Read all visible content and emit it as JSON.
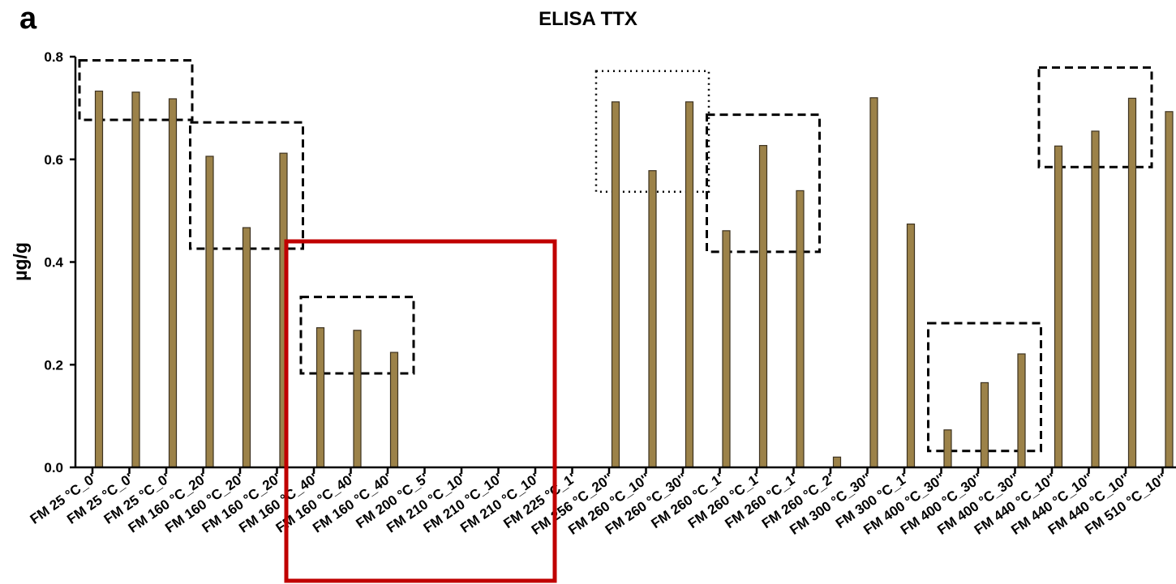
{
  "panel_letter": "a",
  "chart_data": {
    "type": "bar",
    "title": "ELISA TTX",
    "xlabel": "",
    "ylabel": "µg/g",
    "ylim": [
      0,
      0.8
    ],
    "yticks": [
      "0.0",
      "0.2",
      "0.4",
      "0.6",
      "0.8"
    ],
    "grid": false,
    "bar_color": "#9c8249",
    "bar_edge_color": "#3d3220",
    "highlight_color": "#c00000",
    "categories": [
      "FM  25 °C_0'",
      "FM 25 °C_0'",
      "FM 25 °C_0'",
      "FM 160 °C_20'",
      "FM 160 °C_20'",
      "FM 160 °C_20'",
      "FM 160 °C_40'",
      "FM 160 °C_40'",
      "FM 160 °C_40'",
      "FM 200 °C_5'",
      "FM 210 °C_10'",
      "FM 210 °C_10'",
      "FM 210 °C_10'",
      "FM 225 °C_1'",
      "FM 256 °C_20''",
      "FM 260 °C_10''",
      "FM 260 °C_30''",
      "FM 260 °C_1'",
      "FM 260 °C_1'",
      "FM 260 °C_1'",
      "FM 260 °C_2'",
      "FM 300 °C_30''",
      "FM 300 °C_1'",
      "FM 400 °C_30''",
      "FM 400 °C_30''",
      "FM 400 °C_30''",
      "FM 440 °C_10''",
      "FM 440 °C_10''",
      "FM 440 °C_10''",
      "FM 510 °C_10''"
    ],
    "values": [
      0.733,
      0.731,
      0.718,
      0.606,
      0.467,
      0.612,
      0.272,
      0.267,
      0.224,
      0,
      0,
      0,
      0,
      0,
      0.712,
      0.578,
      0.712,
      0.461,
      0.627,
      0.539,
      0.02,
      0.72,
      0.474,
      0.073,
      0.165,
      0.221,
      0.626,
      0.655,
      0.719,
      0.693
    ],
    "groups": [
      {
        "from": 0,
        "to": 2,
        "style": "dashed"
      },
      {
        "from": 3,
        "to": 5,
        "style": "dashed"
      },
      {
        "from": 6,
        "to": 8,
        "style": "dashed"
      },
      {
        "from": 14,
        "to": 16,
        "style": "dotted"
      },
      {
        "from": 17,
        "to": 19,
        "style": "dashed"
      },
      {
        "from": 23,
        "to": 25,
        "style": "dashed"
      },
      {
        "from": 26,
        "to": 28,
        "style": "dashed"
      }
    ],
    "highlight": {
      "from": 6,
      "to": 12
    }
  }
}
